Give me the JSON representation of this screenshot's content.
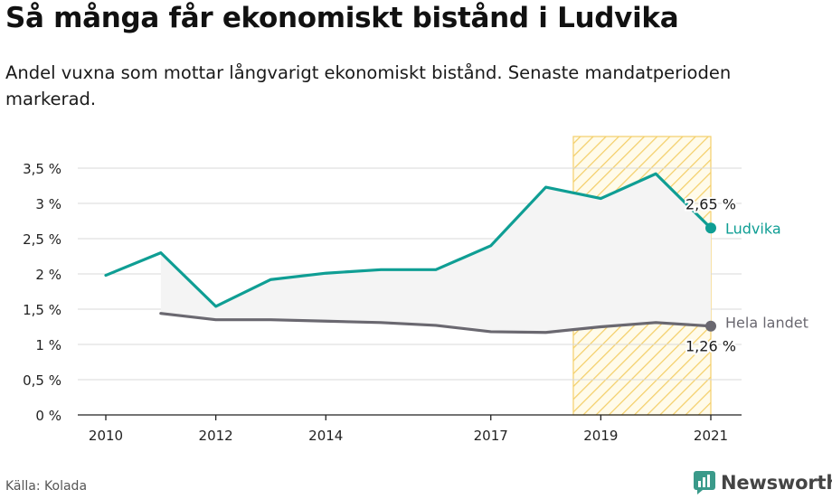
{
  "header": {
    "title": "Så många får ekonomiskt bistånd i Ludvika",
    "subtitle": "Andel vuxna som mottar långvarigt ekonomiskt bistånd. Senaste mandatperioden markerad."
  },
  "footer": {
    "source": "Källa: Kolada",
    "brand": "Newsworthy"
  },
  "colors": {
    "ludvika": "#0f9e94",
    "hela_landet": "#6a6870",
    "highlight": "#f4cf6a",
    "gap_fill": "#f4f4f4",
    "grid": "#d8d8d8"
  },
  "chart_data": {
    "type": "line",
    "title": "Så många får ekonomiskt bistånd i Ludvika",
    "xlabel": "",
    "ylabel": "",
    "x_ticks": [
      "2010",
      "2012",
      "2014",
      "2017",
      "2019",
      "2021"
    ],
    "y_ticks": [
      "0 %",
      "0,5 %",
      "1 %",
      "1,5 %",
      "2 %",
      "2,5 %",
      "3 %",
      "3,5 %"
    ],
    "xlim": [
      2010,
      2021
    ],
    "ylim": [
      0,
      3.5
    ],
    "grid": true,
    "highlight_period": [
      2018.5,
      2021
    ],
    "series": [
      {
        "name": "Ludvika",
        "x": [
          2010,
          2011,
          2012,
          2013,
          2014,
          2015,
          2016,
          2017,
          2018,
          2019,
          2020,
          2021
        ],
        "values": [
          1.98,
          2.3,
          1.54,
          1.92,
          2.01,
          2.06,
          2.06,
          2.4,
          3.23,
          3.07,
          3.42,
          2.65
        ],
        "end_label": "2,65 %"
      },
      {
        "name": "Hela landet",
        "x": [
          2011,
          2012,
          2013,
          2014,
          2015,
          2016,
          2017,
          2018,
          2019,
          2020,
          2021
        ],
        "values": [
          1.44,
          1.35,
          1.35,
          1.33,
          1.31,
          1.27,
          1.18,
          1.17,
          1.25,
          1.31,
          1.26
        ],
        "end_label": "1,26 %"
      }
    ]
  }
}
